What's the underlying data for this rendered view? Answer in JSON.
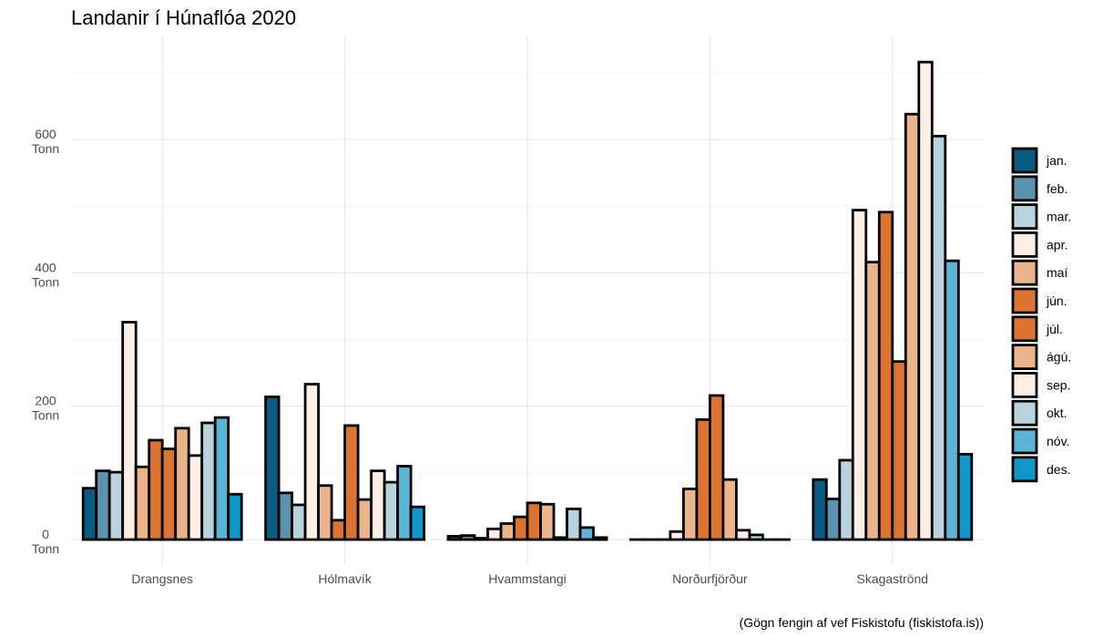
{
  "chart_data": {
    "type": "bar",
    "title": "Landanir í Húnaflóa 2020",
    "caption": "(Gögn fengin af vef Fiskistofu (fiskistofa.is))",
    "xlabel": "",
    "ylabel": "",
    "ylim": [
      -40,
      760
    ],
    "y_ticks": [
      0,
      200,
      400,
      600
    ],
    "y_tick_unit": "Tonn",
    "grid": true,
    "legend_position": "right",
    "categories": [
      "Drangsnes",
      "Hólmavík",
      "Hvammstangi",
      "Norðurfjörður",
      "Skagaströnd"
    ],
    "series": [
      {
        "name": "jan.",
        "color": "#0b5a84",
        "values": [
          77,
          214,
          5,
          0,
          90
        ]
      },
      {
        "name": "feb.",
        "color": "#5b92ad",
        "values": [
          103,
          70,
          6,
          0,
          61
        ]
      },
      {
        "name": "mar.",
        "color": "#b8d3de",
        "values": [
          101,
          52,
          2,
          0,
          119
        ]
      },
      {
        "name": "apr.",
        "color": "#fdefe5",
        "values": [
          326,
          233,
          16,
          12,
          494
        ]
      },
      {
        "name": "maí",
        "color": "#ebb48b",
        "values": [
          109,
          81,
          24,
          76,
          416
        ]
      },
      {
        "name": "jún.",
        "color": "#dc7431",
        "values": [
          149,
          29,
          34,
          180,
          491
        ]
      },
      {
        "name": "júl.",
        "color": "#dc7431",
        "values": [
          136,
          171,
          55,
          216,
          267
        ]
      },
      {
        "name": "ágú.",
        "color": "#ebb48b",
        "values": [
          167,
          60,
          53,
          90,
          638
        ]
      },
      {
        "name": "sep.",
        "color": "#fdefe5",
        "values": [
          126,
          103,
          3,
          14,
          716
        ]
      },
      {
        "name": "okt.",
        "color": "#b8d3de",
        "values": [
          175,
          86,
          46,
          7,
          605
        ]
      },
      {
        "name": "nóv.",
        "color": "#5bb5d7",
        "values": [
          183,
          110,
          18,
          0,
          418
        ]
      },
      {
        "name": "des.",
        "color": "#0e97c8",
        "values": [
          68,
          49,
          3,
          0,
          128
        ]
      }
    ]
  }
}
